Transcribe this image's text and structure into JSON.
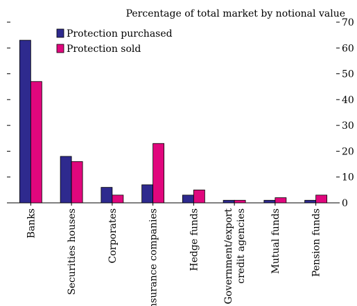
{
  "chart_data": {
    "type": "bar",
    "title": "Percentage of total market by notional value",
    "categories": [
      "Banks",
      "Securities houses",
      "Corporates",
      "Insurance companies",
      "Hedge funds",
      "Government/export credit agencies",
      "Mutual funds",
      "Pension funds"
    ],
    "category_lines": [
      [
        "Banks"
      ],
      [
        "Securities houses"
      ],
      [
        "Corporates"
      ],
      [
        "Insurance companies"
      ],
      [
        "Hedge funds"
      ],
      [
        "Government/export",
        "credit agencies"
      ],
      [
        "Mutual funds"
      ],
      [
        "Pension funds"
      ]
    ],
    "series": [
      {
        "name": "Protection purchased",
        "color": "#2e2a8e",
        "values": [
          63,
          18,
          6,
          7,
          3,
          1,
          1,
          1
        ]
      },
      {
        "name": "Protection sold",
        "color": "#e0077d",
        "values": [
          47,
          16,
          3,
          23,
          5,
          1,
          2,
          3
        ]
      }
    ],
    "ylim": [
      0,
      70
    ],
    "yticks": [
      0,
      10,
      20,
      30,
      40,
      50,
      60,
      70
    ],
    "y_axis_side": "both",
    "y_labels_side": "right",
    "legend_position": "top-left",
    "grid": false
  }
}
